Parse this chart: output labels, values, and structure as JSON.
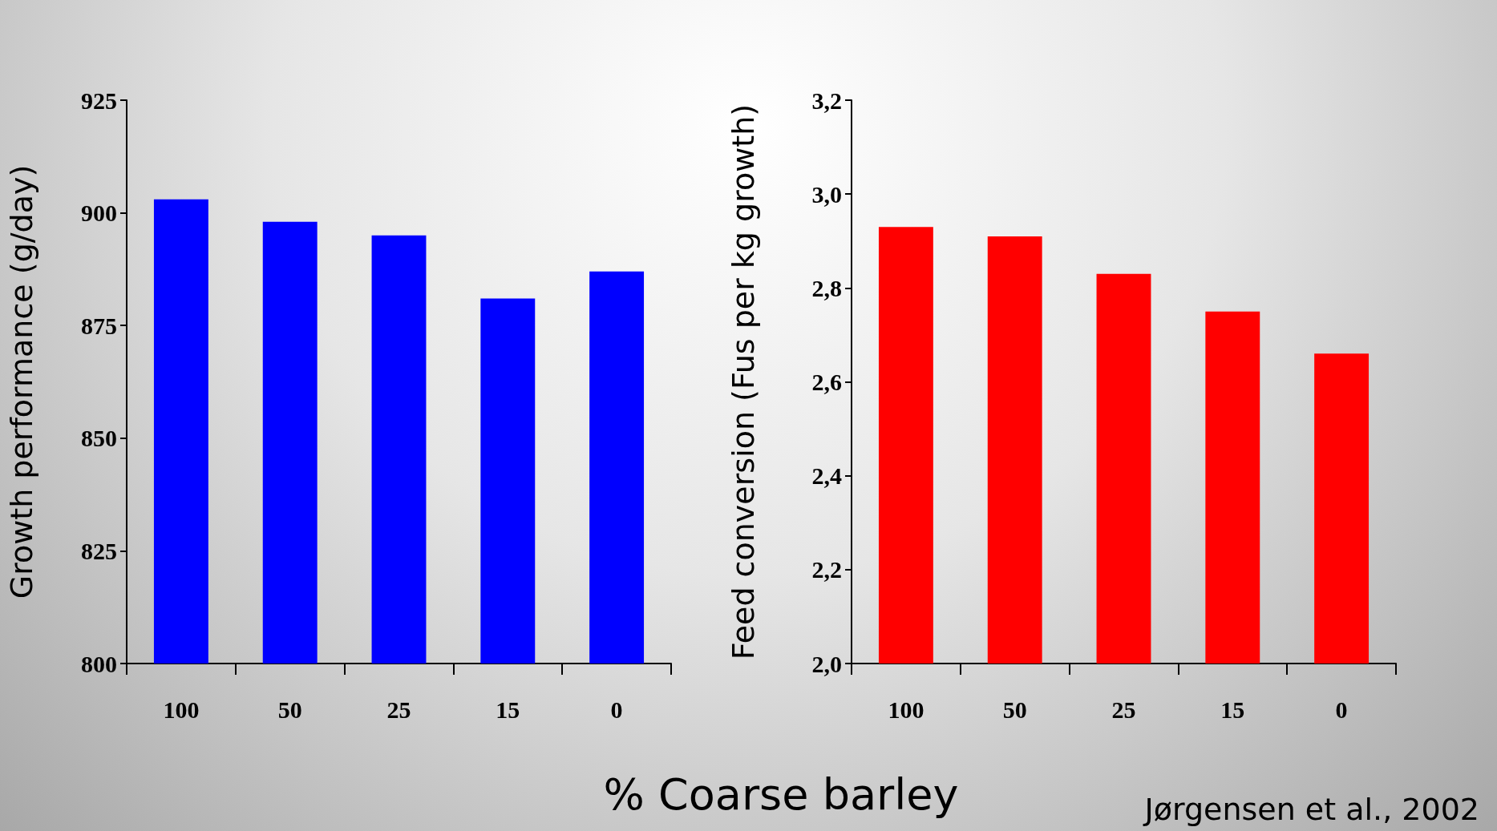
{
  "chart_data": [
    {
      "type": "bar",
      "ylabel": "Growth performance (g/day)",
      "xlabel": "% Coarse barley",
      "categories": [
        "100",
        "50",
        "25",
        "15",
        "0"
      ],
      "values": [
        903,
        898,
        895,
        881,
        887
      ],
      "color": "#0000ff",
      "ylim": [
        800,
        925
      ],
      "yticks": [
        800,
        825,
        850,
        875,
        900,
        925
      ]
    },
    {
      "type": "bar",
      "ylabel": "Feed conversion (Fus per kg growth)",
      "categories": [
        "100",
        "50",
        "25",
        "15",
        "0"
      ],
      "values": [
        2.93,
        2.91,
        2.83,
        2.75,
        2.66
      ],
      "color": "#ff0000",
      "ylim": [
        2.0,
        3.2
      ],
      "yticks": [
        {
          "value": 2.0,
          "label": "2,0"
        },
        {
          "value": 2.2,
          "label": "2,2"
        },
        {
          "value": 2.4,
          "label": "2,4"
        },
        {
          "value": 2.6,
          "label": "2,6"
        },
        {
          "value": 2.8,
          "label": "2,8"
        },
        {
          "value": 3.0,
          "label": "3,0"
        },
        {
          "value": 3.2,
          "label": "3,2"
        }
      ],
      "annotations": [
        "Jørgensen et al., 2002"
      ]
    }
  ]
}
